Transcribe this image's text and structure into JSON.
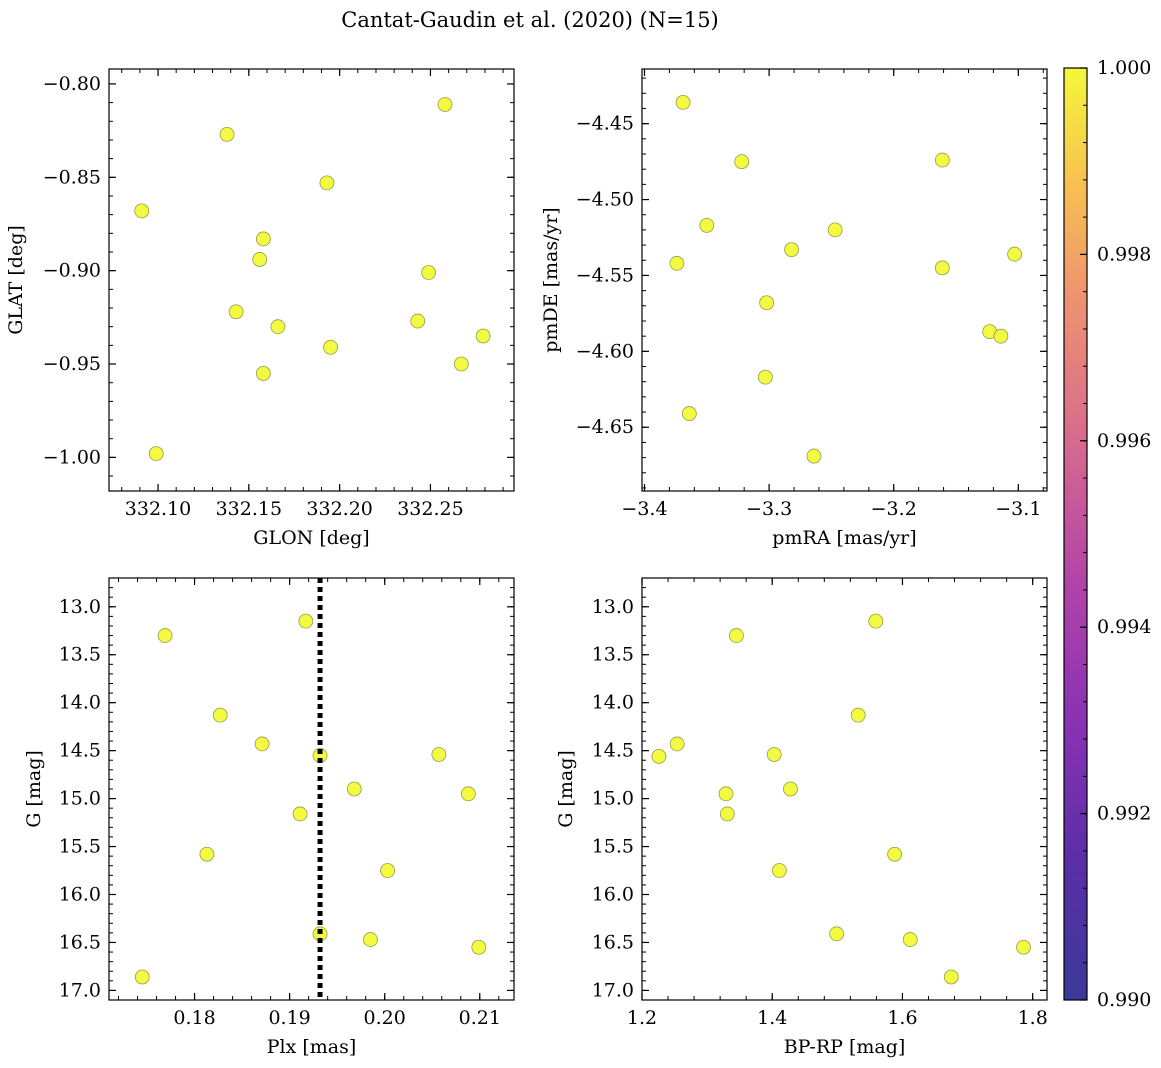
{
  "figure": {
    "title": "Cantat-Gaudin et al. (2020) (N=15)"
  },
  "colorbar": {
    "min": 0.99,
    "max": 1.0,
    "ticks": [
      0.99,
      0.992,
      0.994,
      0.996,
      0.998,
      1.0
    ],
    "tick_labels": [
      "0.990",
      "0.992",
      "0.994",
      "0.996",
      "0.998",
      "1.000"
    ],
    "colormap": "plasma",
    "marker_color": "#f0f921",
    "marker_edge": "#9a9a4a"
  },
  "chart_data": [
    {
      "type": "scatter",
      "name": "glon-glat",
      "xlabel": "GLON [deg]",
      "ylabel": "GLAT [deg]",
      "xlim": [
        332.073,
        332.296
      ],
      "ylim": [
        -1.018,
        -0.792
      ],
      "y_inverted": false,
      "xticks": [
        332.1,
        332.15,
        332.2,
        332.25
      ],
      "xtick_labels": [
        "332.10",
        "332.15",
        "332.20",
        "332.25"
      ],
      "xminor": 0.01,
      "yticks": [
        -1.0,
        -0.95,
        -0.9,
        -0.85,
        -0.8
      ],
      "ytick_labels": [
        "−1.00",
        "−0.95",
        "−0.90",
        "−0.85",
        "−0.80"
      ],
      "yminor": 0.01,
      "x": [
        332.091,
        332.099,
        332.138,
        332.143,
        332.156,
        332.158,
        332.158,
        332.166,
        332.193,
        332.195,
        332.243,
        332.249,
        332.258,
        332.267,
        332.279
      ],
      "y": [
        -0.868,
        -0.998,
        -0.827,
        -0.922,
        -0.894,
        -0.883,
        -0.955,
        -0.93,
        -0.853,
        -0.941,
        -0.927,
        -0.901,
        -0.811,
        -0.95,
        -0.935
      ]
    },
    {
      "type": "scatter",
      "name": "pmra-pmde",
      "xlabel": "pmRA [mas/yr]",
      "ylabel": "pmDE [mas/yr]",
      "xlim": [
        -3.402,
        -3.077
      ],
      "ylim": [
        -4.692,
        -4.414
      ],
      "y_inverted": false,
      "xticks": [
        -3.4,
        -3.3,
        -3.2,
        -3.1
      ],
      "xtick_labels": [
        "−3.4",
        "−3.3",
        "−3.2",
        "−3.1"
      ],
      "xminor": 0.02,
      "yticks": [
        -4.65,
        -4.6,
        -4.55,
        -4.5,
        -4.45
      ],
      "ytick_labels": [
        "−4.65",
        "−4.60",
        "−4.55",
        "−4.50",
        "−4.45"
      ],
      "yminor": 0.01,
      "x": [
        -3.369,
        -3.374,
        -3.364,
        -3.35,
        -3.322,
        -3.302,
        -3.303,
        -3.282,
        -3.264,
        -3.247,
        -3.161,
        -3.161,
        -3.123,
        -3.114,
        -3.103
      ],
      "y": [
        -4.436,
        -4.542,
        -4.641,
        -4.517,
        -4.475,
        -4.568,
        -4.617,
        -4.533,
        -4.669,
        -4.52,
        -4.474,
        -4.545,
        -4.587,
        -4.59,
        -4.536
      ]
    },
    {
      "type": "scatter",
      "name": "plx-g",
      "xlabel": "Plx [mas]",
      "ylabel": "G [mag]",
      "xlim": [
        0.171,
        0.2136
      ],
      "ylim": [
        17.1,
        12.7
      ],
      "y_inverted": true,
      "xticks": [
        0.18,
        0.19,
        0.2,
        0.21
      ],
      "xtick_labels": [
        "0.18",
        "0.19",
        "0.20",
        "0.21"
      ],
      "xminor": 0.002,
      "yticks": [
        13.0,
        13.5,
        14.0,
        14.5,
        15.0,
        15.5,
        16.0,
        16.5,
        17.0
      ],
      "ytick_labels": [
        "13.0",
        "13.5",
        "14.0",
        "14.5",
        "15.0",
        "15.5",
        "16.0",
        "16.5",
        "17.0"
      ],
      "yminor": 0.1,
      "vline": {
        "x": 0.1932,
        "style": "dotted",
        "color": "#000000"
      },
      "x": [
        0.1745,
        0.1769,
        0.1813,
        0.1827,
        0.1871,
        0.1911,
        0.1917,
        0.1932,
        0.1932,
        0.1968,
        0.1985,
        0.2003,
        0.2057,
        0.2088,
        0.2099
      ],
      "y": [
        16.86,
        13.3,
        15.58,
        14.13,
        14.43,
        15.16,
        13.15,
        14.55,
        16.41,
        14.9,
        16.47,
        15.75,
        14.54,
        14.95,
        16.55
      ]
    },
    {
      "type": "scatter",
      "name": "bprp-g",
      "xlabel": "BP-RP [mag]",
      "ylabel": "G [mag]",
      "xlim": [
        1.2,
        1.822
      ],
      "ylim": [
        17.1,
        12.7
      ],
      "y_inverted": true,
      "xticks": [
        1.2,
        1.4,
        1.6,
        1.8
      ],
      "xtick_labels": [
        "1.2",
        "1.4",
        "1.6",
        "1.8"
      ],
      "xminor": 0.04,
      "yticks": [
        13.0,
        13.5,
        14.0,
        14.5,
        15.0,
        15.5,
        16.0,
        16.5,
        17.0
      ],
      "ytick_labels": [
        "13.0",
        "13.5",
        "14.0",
        "14.5",
        "15.0",
        "15.5",
        "16.0",
        "16.5",
        "17.0"
      ],
      "yminor": 0.1,
      "x": [
        1.226,
        1.254,
        1.329,
        1.331,
        1.345,
        1.403,
        1.411,
        1.428,
        1.499,
        1.532,
        1.559,
        1.588,
        1.612,
        1.675,
        1.786
      ],
      "y": [
        14.56,
        14.43,
        14.95,
        15.16,
        13.3,
        14.54,
        15.75,
        14.9,
        16.41,
        14.13,
        13.15,
        15.58,
        16.47,
        16.86,
        16.55
      ]
    }
  ]
}
